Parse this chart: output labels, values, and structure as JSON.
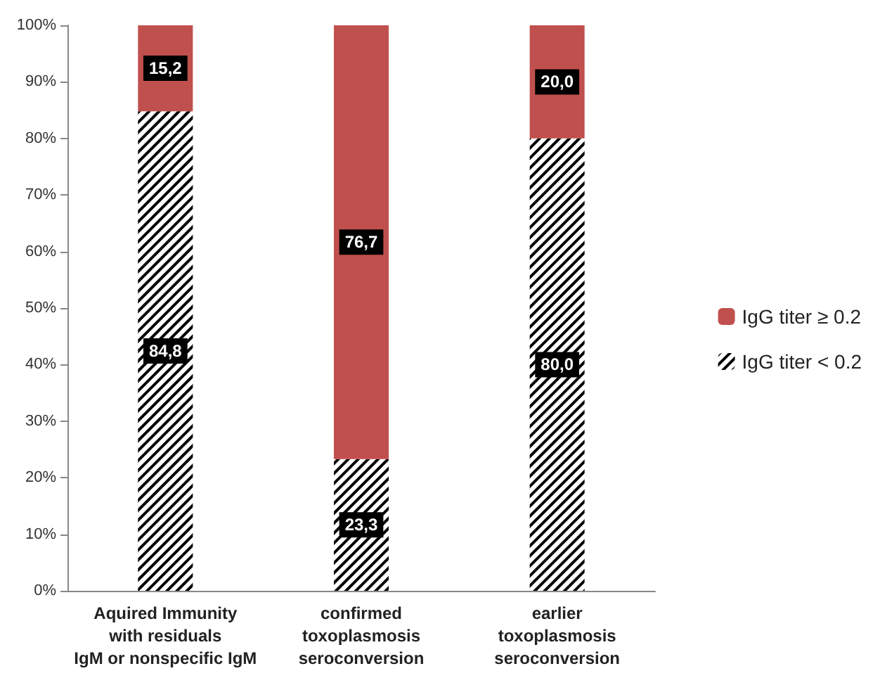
{
  "chart_data": {
    "type": "bar",
    "stacked": true,
    "categories": [
      "Aquired Immunity\nwith residuals\nIgM or nonspecific IgM",
      "confirmed\ntoxoplasmosis\nseroconversion",
      "earlier\ntoxoplasmosis\nseroconversion"
    ],
    "series": [
      {
        "name": "IgG titer < 0.2",
        "color": "#000000",
        "values": [
          84.8,
          23.3,
          80.0
        ],
        "value_labels": [
          "84,8",
          "23,3",
          "80,0"
        ]
      },
      {
        "name": "IgG titer ≥ 0.2",
        "color": "#c0504d",
        "values": [
          15.2,
          76.7,
          20.0
        ],
        "value_labels": [
          "15,2",
          "76,7",
          "20,0"
        ]
      }
    ],
    "ylim": [
      0,
      100
    ],
    "yticks": [
      {
        "value": 0,
        "label": "0%"
      },
      {
        "value": 10,
        "label": "10%"
      },
      {
        "value": 20,
        "label": "20%"
      },
      {
        "value": 30,
        "label": "30%"
      },
      {
        "value": 40,
        "label": "40%"
      },
      {
        "value": 50,
        "label": "50%"
      },
      {
        "value": 60,
        "label": "60%"
      },
      {
        "value": 70,
        "label": "70%"
      },
      {
        "value": 80,
        "label": "80%"
      },
      {
        "value": 90,
        "label": "90%"
      },
      {
        "value": 100,
        "label": "100%"
      }
    ],
    "grid": false,
    "legend": "right"
  }
}
